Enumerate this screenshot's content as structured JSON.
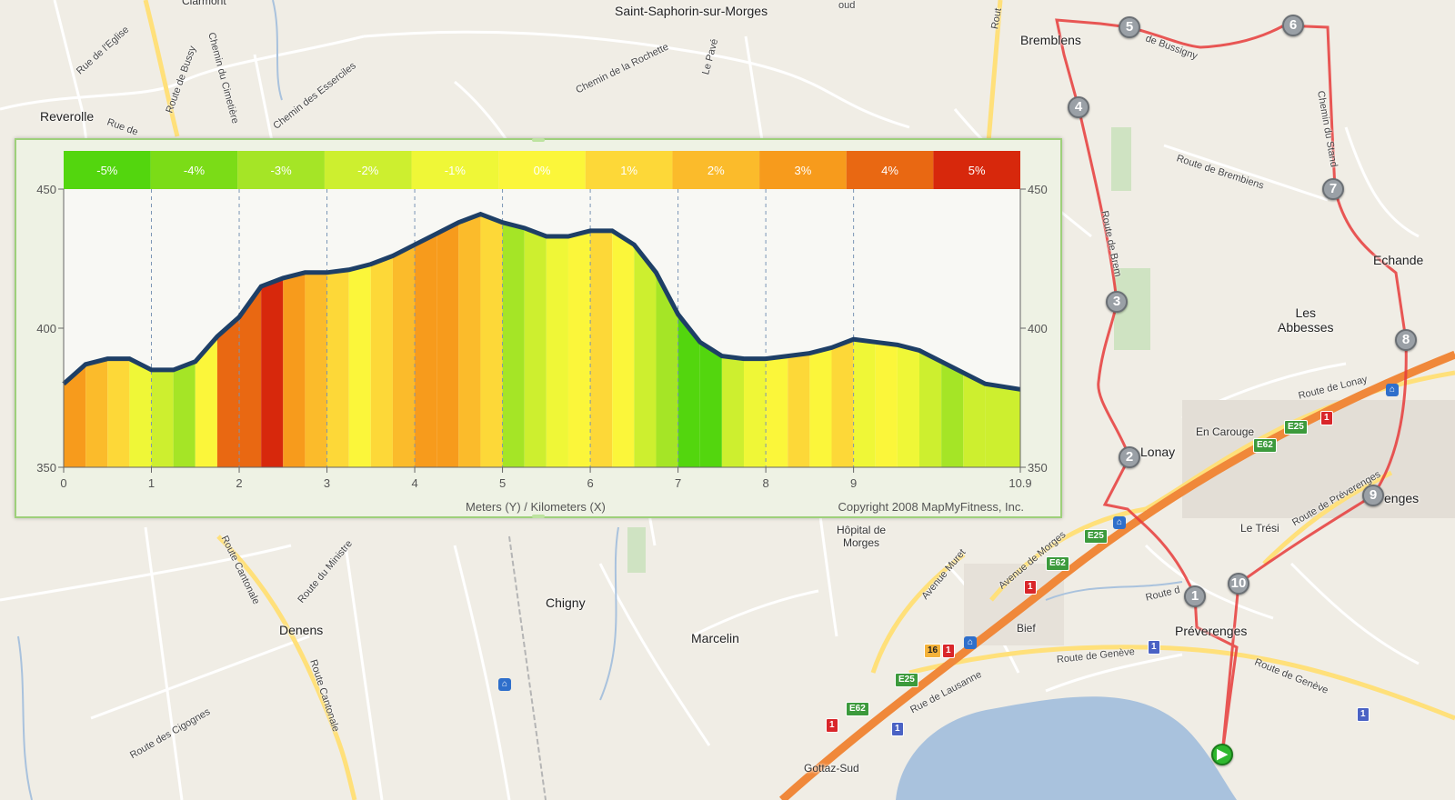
{
  "map": {
    "places": [
      {
        "id": "saint-saphorin",
        "text": "Saint-Saphorin-sur-Morges"
      },
      {
        "id": "bremblens",
        "text": "Bremblens"
      },
      {
        "id": "reverolle",
        "text": "Reverolle"
      },
      {
        "id": "clarmont",
        "text": "Clarmont"
      },
      {
        "id": "echandens",
        "text": "Echande"
      },
      {
        "id": "les-abbesses",
        "text": "Les\nAbbesses"
      },
      {
        "id": "en-carouge",
        "text": "En Carouge"
      },
      {
        "id": "hopital",
        "text": "Hôpital de\nMorges"
      },
      {
        "id": "chigny",
        "text": "Chigny"
      },
      {
        "id": "denens",
        "text": "Denens"
      },
      {
        "id": "marcelin",
        "text": "Marcelin"
      },
      {
        "id": "preverenges",
        "text": "Préverenges"
      },
      {
        "id": "le-tresi",
        "text": "Le Trési"
      },
      {
        "id": "bief",
        "text": "Bief"
      },
      {
        "id": "gottaz-sud",
        "text": "Gottaz-Sud"
      },
      {
        "id": "lonay",
        "text": "Lonay"
      },
      {
        "id": "preverenges-east",
        "text": "enges"
      }
    ],
    "roads": [
      {
        "id": "rue-eglise",
        "text": "Rue de l'Eglise"
      },
      {
        "id": "route-bussy",
        "text": "Route de Bussy"
      },
      {
        "id": "chemin-cimetiere",
        "text": "Chemin du Cimetière"
      },
      {
        "id": "chemin-esserciles",
        "text": "Chemin des Esserciles"
      },
      {
        "id": "chemin-rochette",
        "text": "Chemin de la Rochette"
      },
      {
        "id": "le-pave",
        "text": "Le Pavé"
      },
      {
        "id": "rte-bussigny",
        "text": "de Bussigny"
      },
      {
        "id": "route-brembiens",
        "text": "Route de Brembiens"
      },
      {
        "id": "chemin-stand",
        "text": "Chemin du Stand"
      },
      {
        "id": "route-bremb",
        "text": "Route de Brem"
      },
      {
        "id": "route-lonay",
        "text": "Route de Lonay"
      },
      {
        "id": "route-preverenges",
        "text": "Route de Préverenges"
      },
      {
        "id": "avenue-morges",
        "text": "Avenue de Morges"
      },
      {
        "id": "avenue-muret",
        "text": "Avenue Muret"
      },
      {
        "id": "route-geneve-1",
        "text": "Route de Genève"
      },
      {
        "id": "route-geneve-2",
        "text": "Route de Genève"
      },
      {
        "id": "rue-lausanne",
        "text": "Rue de Lausanne"
      },
      {
        "id": "route-cantonale-1",
        "text": "Route Cantonale"
      },
      {
        "id": "route-cantonale-2",
        "text": "Route Cantonale"
      },
      {
        "id": "route-ministre",
        "text": "Route du Ministre"
      },
      {
        "id": "route-cigognes",
        "text": "Route des Cigognes"
      },
      {
        "id": "route-oranges",
        "text": "Route d"
      },
      {
        "id": "route-reverolle",
        "text": "Rue de"
      },
      {
        "id": "route-top",
        "text": "Rout"
      },
      {
        "id": "oud",
        "text": "oud"
      }
    ],
    "markers": [
      "1",
      "2",
      "3",
      "4",
      "5",
      "6",
      "7",
      "8",
      "9",
      "10"
    ],
    "shields": [
      {
        "id": "e25-a",
        "text": "E25",
        "kind": "green"
      },
      {
        "id": "e62-a",
        "text": "E62",
        "kind": "green"
      },
      {
        "id": "one-a",
        "text": "1",
        "kind": "red"
      },
      {
        "id": "e25-b",
        "text": "E25",
        "kind": "green"
      },
      {
        "id": "e62-b",
        "text": "E62",
        "kind": "green"
      },
      {
        "id": "one-b",
        "text": "1",
        "kind": "red"
      },
      {
        "id": "sixteen",
        "text": "16",
        "kind": "orange"
      },
      {
        "id": "one-c",
        "text": "1",
        "kind": "red"
      },
      {
        "id": "e25-c",
        "text": "E25",
        "kind": "green"
      },
      {
        "id": "e62-c",
        "text": "E62",
        "kind": "green"
      },
      {
        "id": "one-d",
        "text": "1",
        "kind": "red"
      },
      {
        "id": "one-blue-a",
        "text": "1",
        "kind": "blue"
      },
      {
        "id": "one-blue-b",
        "text": "1",
        "kind": "blue"
      },
      {
        "id": "one-blue-c",
        "text": "1",
        "kind": "blue"
      }
    ],
    "colors": {
      "route": "#e63b3b",
      "highway": "#f0883a",
      "water": "#a9c2dd",
      "land": "#f0ede5",
      "major_road": "#ffe07a"
    }
  },
  "chart_data": {
    "type": "area",
    "xlabel": "Meters (Y) / Kilometers (X)",
    "copyright": "Copyright 2008 MapMyFitness, Inc.",
    "xlim": [
      0,
      10.9
    ],
    "ylim": [
      350,
      450
    ],
    "xticks": [
      "0",
      "1",
      "2",
      "3",
      "4",
      "5",
      "6",
      "7",
      "8",
      "9",
      "10.9"
    ],
    "yticks": [
      350,
      400,
      450
    ],
    "legend": [
      {
        "label": "-5%",
        "color": "#53d60e"
      },
      {
        "label": "-4%",
        "color": "#7bdc17"
      },
      {
        "label": "-3%",
        "color": "#a5e526"
      },
      {
        "label": "-2%",
        "color": "#cdef2f"
      },
      {
        "label": "-1%",
        "color": "#eff737"
      },
      {
        "label": "0%",
        "color": "#fbf63a"
      },
      {
        "label": "1%",
        "color": "#fdd838"
      },
      {
        "label": "2%",
        "color": "#fbbb2b"
      },
      {
        "label": "3%",
        "color": "#f79b1c"
      },
      {
        "label": "4%",
        "color": "#e96812"
      },
      {
        "label": "5%",
        "color": "#d7280c"
      }
    ],
    "x": [
      0,
      0.25,
      0.5,
      0.75,
      1.0,
      1.25,
      1.5,
      1.75,
      2.0,
      2.25,
      2.5,
      2.75,
      3.0,
      3.25,
      3.5,
      3.75,
      4.0,
      4.25,
      4.5,
      4.75,
      5.0,
      5.25,
      5.5,
      5.75,
      6.0,
      6.25,
      6.5,
      6.75,
      7.0,
      7.25,
      7.5,
      7.75,
      8.0,
      8.25,
      8.5,
      8.75,
      9.0,
      9.25,
      9.5,
      9.75,
      10.0,
      10.25,
      10.5,
      10.9
    ],
    "y": [
      380,
      387,
      389,
      389,
      385,
      385,
      388,
      397,
      404,
      415,
      418,
      420,
      420,
      421,
      423,
      426,
      430,
      434,
      438,
      441,
      438,
      436,
      433,
      433,
      435,
      435,
      430,
      420,
      405,
      395,
      390,
      389,
      389,
      390,
      391,
      393,
      396,
      395,
      394,
      392,
      388,
      384,
      380,
      378
    ],
    "grade_colors": [
      "#f79b1c",
      "#fbbb2b",
      "#fdd838",
      "#eff737",
      "#cdef2f",
      "#a5e526",
      "#fbf63a",
      "#e96812",
      "#e96812",
      "#d7280c",
      "#f79b1c",
      "#fbbb2b",
      "#fdd838",
      "#fbf63a",
      "#fdd838",
      "#fbbb2b",
      "#f79b1c",
      "#f79b1c",
      "#fbbb2b",
      "#fdd838",
      "#a5e526",
      "#cdef2f",
      "#eff737",
      "#fbf63a",
      "#fdd838",
      "#fbf63a",
      "#cdef2f",
      "#a5e526",
      "#53d60e",
      "#53d60e",
      "#cdef2f",
      "#eff737",
      "#fbf63a",
      "#fdd838",
      "#fbf63a",
      "#fdd838",
      "#eff737",
      "#fbf63a",
      "#eff737",
      "#cdef2f",
      "#a5e526",
      "#cdef2f",
      "#cdef2f"
    ]
  }
}
